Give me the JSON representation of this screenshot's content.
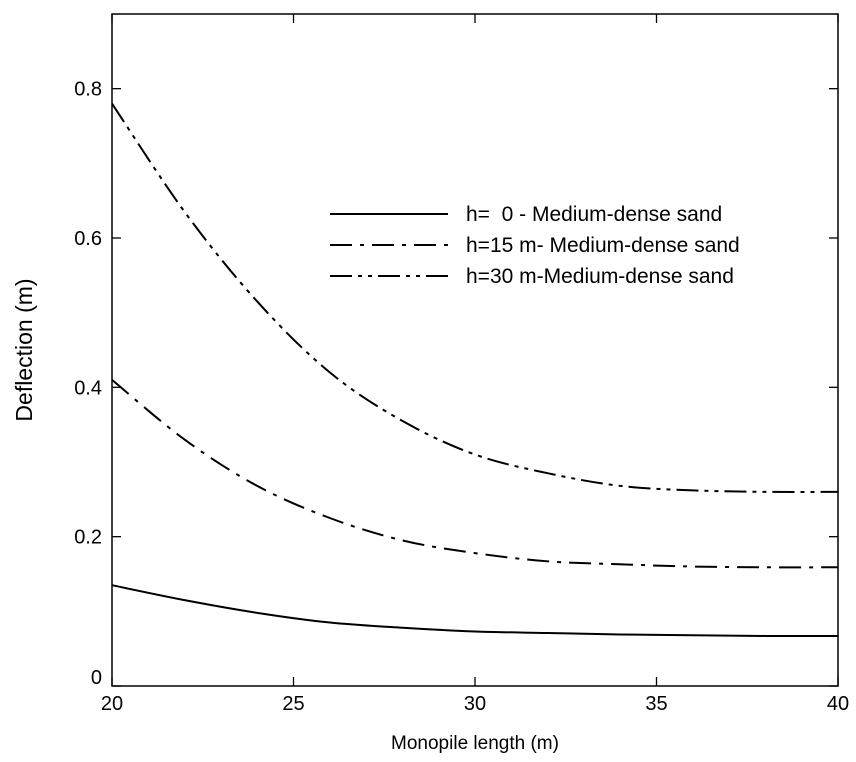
{
  "chart_data": {
    "type": "line",
    "title": "",
    "xlabel": "Monopile length (m)",
    "ylabel": "Deflection (m)",
    "xlim": [
      20,
      40
    ],
    "ylim": [
      0,
      0.9
    ],
    "xticks": [
      20,
      25,
      30,
      35,
      40
    ],
    "xtick_labels": [
      "20",
      "25",
      "30",
      "35",
      "40"
    ],
    "yticks": [
      0,
      0.2,
      0.4,
      0.6,
      0.8
    ],
    "ytick_labels": [
      "0",
      "0.2",
      "0.4",
      "0.6",
      "0.8"
    ],
    "grid": false,
    "legend_position": "upper-right",
    "x": [
      20,
      22,
      24,
      26,
      28,
      30,
      32,
      34,
      36,
      38,
      40
    ],
    "series": [
      {
        "name": "h=  0 - Medium-dense sand",
        "style": "solid",
        "values": [
          0.135,
          0.115,
          0.098,
          0.085,
          0.078,
          0.073,
          0.071,
          0.069,
          0.068,
          0.067,
          0.067
        ]
      },
      {
        "name": "h=15 m- Medium-dense sand",
        "style": "dash-dot",
        "values": [
          0.41,
          0.33,
          0.268,
          0.225,
          0.195,
          0.178,
          0.167,
          0.163,
          0.16,
          0.159,
          0.159
        ]
      },
      {
        "name": "h=30 m-Medium-dense sand",
        "style": "dash-dot-dot",
        "values": [
          0.78,
          0.635,
          0.515,
          0.42,
          0.355,
          0.31,
          0.285,
          0.268,
          0.262,
          0.26,
          0.26
        ]
      }
    ]
  }
}
